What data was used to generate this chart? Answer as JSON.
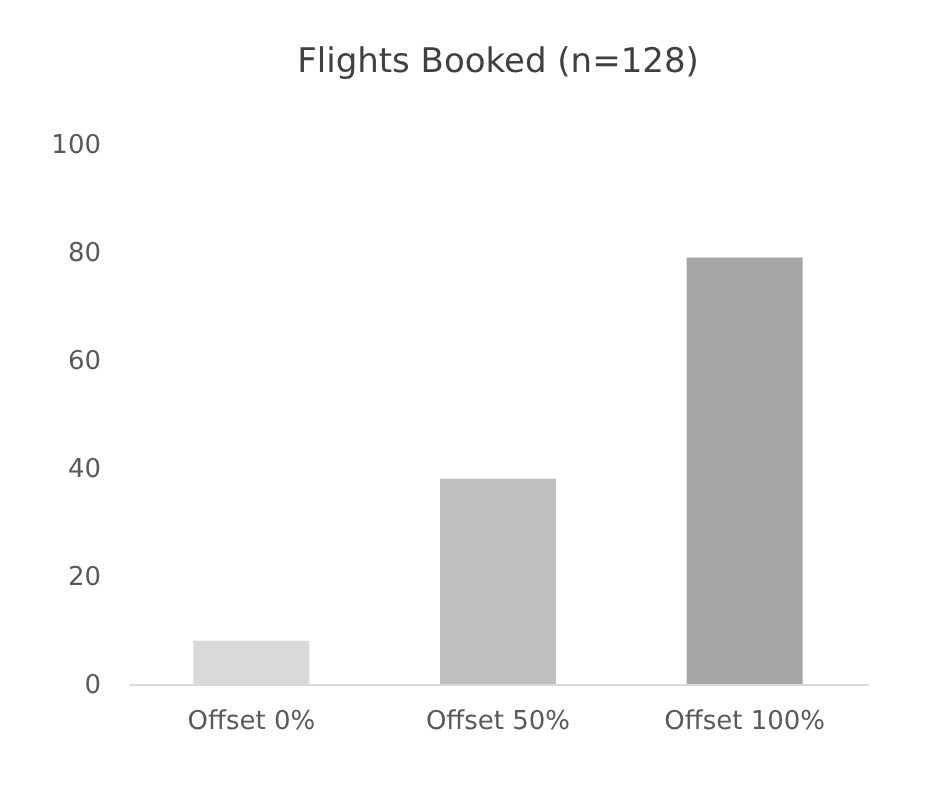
{
  "chart_data": {
    "type": "bar",
    "title": "Flights Booked (n=128)",
    "categories": [
      "Offset 0%",
      "Offset 50%",
      "Offset 100%"
    ],
    "values": [
      8,
      38,
      79
    ],
    "colors": [
      "#d9d9d9",
      "#bfbfbf",
      "#a5a5a5"
    ],
    "ylim": [
      0,
      100
    ],
    "yticks": [
      0,
      20,
      40,
      60,
      80,
      100
    ],
    "grid": false
  }
}
